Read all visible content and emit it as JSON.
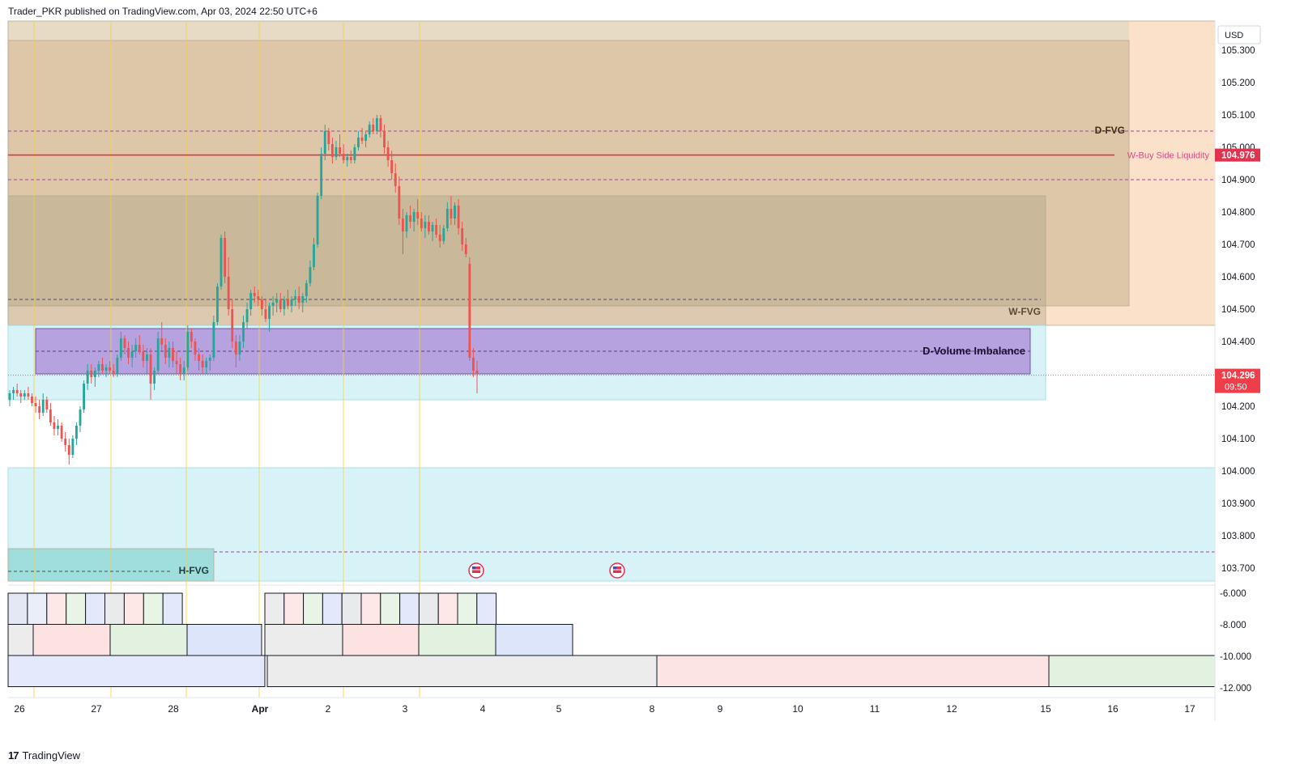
{
  "header": {
    "text": "Trader_PKR published on TradingView.com, Apr 03, 2024 22:50 UTC+6"
  },
  "footer": {
    "brand": "TradingView",
    "logo_icon": "tradingview-logo-icon"
  },
  "chart_data": {
    "type": "candlestick",
    "currency": "USD",
    "y_axis_ticks": [
      "105.300",
      "105.200",
      "105.100",
      "105.000",
      "104.900",
      "104.800",
      "104.700",
      "104.600",
      "104.500",
      "104.400",
      "104.300",
      "104.200",
      "104.100",
      "104.000",
      "103.900",
      "103.800",
      "103.700"
    ],
    "ylim": [
      103.66,
      105.39
    ],
    "x_axis_ticks": [
      "26",
      "27",
      "28",
      "Apr",
      "2",
      "3",
      "4",
      "5",
      "8",
      "9",
      "10",
      "11",
      "12",
      "15",
      "16",
      "17"
    ],
    "labels": {
      "d_fvg": "D-FVG",
      "w_fvg": "W-FVG",
      "h_fvg": "H-FVG",
      "d_volume_imbalance": "D-Volume Imbalance",
      "w_buy_side_liquidity": "W-Buy Side Liquidity"
    },
    "price_badges": {
      "liquidity_level": "104.976",
      "last_price": "104.296",
      "countdown": "09:50"
    },
    "levels": {
      "buy_side_liquidity": 104.976,
      "last_price": 104.296,
      "dashed_d_fvg": 105.05,
      "dashed_upper": 104.9,
      "dashed_w_fvg": 104.53,
      "dashed_volume_imbalance": 104.37,
      "dashed_low": 103.75,
      "dashed_h_fvg": 103.69
    },
    "zones": [
      {
        "name": "d-fvg-outer",
        "top": 105.39,
        "bottom": 104.45,
        "color": "#f8c89e",
        "alpha": 0.55
      },
      {
        "name": "d-fvg-inner",
        "top": 105.33,
        "bottom": 104.51,
        "color": "#c7b38c",
        "alpha": 0.55
      },
      {
        "name": "w-fvg",
        "top": 104.85,
        "bottom": 104.45,
        "color": "#a39f80",
        "alpha": 0.35
      },
      {
        "name": "cyan-upper",
        "top": 104.45,
        "bottom": 104.22,
        "color": "#c8eef4",
        "alpha": 0.7
      },
      {
        "name": "d-volume-imbalance",
        "top": 104.44,
        "bottom": 104.3,
        "color": "#a97fd6",
        "alpha": 0.7
      },
      {
        "name": "cyan-lower",
        "top": 104.01,
        "bottom": 103.66,
        "color": "#c8eef4",
        "alpha": 0.7
      },
      {
        "name": "h-fvg",
        "top": 103.76,
        "bottom": 103.66,
        "color": "#7ccfcc",
        "alpha": 0.6
      }
    ],
    "sub_axis_ticks": [
      "-6.000",
      "-8.000",
      "-10.000",
      "-12.000"
    ],
    "candle_colors": {
      "up": "#26a69a",
      "down": "#ef5350"
    },
    "candles": [
      [
        104.22,
        104.25,
        104.2,
        104.24
      ],
      [
        104.24,
        104.26,
        104.22,
        104.25
      ],
      [
        104.25,
        104.27,
        104.23,
        104.24
      ],
      [
        104.24,
        104.25,
        104.21,
        104.23
      ],
      [
        104.23,
        104.25,
        104.22,
        104.24
      ],
      [
        104.24,
        104.26,
        104.22,
        104.23
      ],
      [
        104.23,
        104.24,
        104.2,
        104.21
      ],
      [
        104.21,
        104.23,
        104.18,
        104.2
      ],
      [
        104.2,
        104.22,
        104.16,
        104.18
      ],
      [
        104.18,
        104.24,
        104.17,
        104.22
      ],
      [
        104.22,
        104.23,
        104.18,
        104.19
      ],
      [
        104.19,
        104.21,
        104.14,
        104.15
      ],
      [
        104.15,
        104.17,
        104.11,
        104.13
      ],
      [
        104.13,
        104.16,
        104.11,
        104.14
      ],
      [
        104.14,
        104.15,
        104.09,
        104.1
      ],
      [
        104.1,
        104.12,
        104.06,
        104.08
      ],
      [
        104.08,
        104.1,
        104.02,
        104.05
      ],
      [
        104.05,
        104.11,
        104.04,
        104.1
      ],
      [
        104.1,
        104.15,
        104.08,
        104.14
      ],
      [
        104.14,
        104.2,
        104.12,
        104.19
      ],
      [
        104.19,
        104.28,
        104.18,
        104.27
      ],
      [
        104.27,
        104.33,
        104.25,
        104.31
      ],
      [
        104.31,
        104.33,
        104.27,
        104.29
      ],
      [
        104.29,
        104.32,
        104.26,
        104.31
      ],
      [
        104.31,
        104.34,
        104.29,
        104.33
      ],
      [
        104.33,
        104.35,
        104.3,
        104.31
      ],
      [
        104.31,
        104.33,
        104.29,
        104.32
      ],
      [
        104.32,
        104.34,
        104.3,
        104.31
      ],
      [
        104.31,
        104.33,
        104.29,
        104.3
      ],
      [
        104.3,
        104.36,
        104.29,
        104.35
      ],
      [
        104.35,
        104.43,
        104.34,
        104.41
      ],
      [
        104.41,
        104.42,
        104.36,
        104.38
      ],
      [
        104.38,
        104.4,
        104.33,
        104.35
      ],
      [
        104.35,
        104.39,
        104.32,
        104.37
      ],
      [
        104.37,
        104.41,
        104.35,
        104.39
      ],
      [
        104.39,
        104.42,
        104.36,
        104.37
      ],
      [
        104.37,
        104.39,
        104.32,
        104.34
      ],
      [
        104.34,
        104.38,
        104.3,
        104.36
      ],
      [
        104.36,
        104.38,
        104.22,
        104.27
      ],
      [
        104.27,
        104.32,
        104.25,
        104.31
      ],
      [
        104.31,
        104.43,
        104.3,
        104.41
      ],
      [
        104.41,
        104.46,
        104.37,
        104.39
      ],
      [
        104.39,
        104.41,
        104.33,
        104.35
      ],
      [
        104.35,
        104.4,
        104.32,
        104.38
      ],
      [
        104.38,
        104.4,
        104.32,
        104.34
      ],
      [
        104.34,
        104.37,
        104.3,
        104.33
      ],
      [
        104.33,
        104.35,
        104.28,
        104.3
      ],
      [
        104.3,
        104.34,
        104.28,
        104.32
      ],
      [
        104.32,
        104.45,
        104.31,
        104.43
      ],
      [
        104.43,
        104.44,
        104.38,
        104.4
      ],
      [
        104.4,
        104.41,
        104.34,
        104.36
      ],
      [
        104.36,
        104.38,
        104.31,
        104.34
      ],
      [
        104.34,
        104.36,
        104.3,
        104.32
      ],
      [
        104.32,
        104.35,
        104.3,
        104.34
      ],
      [
        104.34,
        104.36,
        104.31,
        104.35
      ],
      [
        104.35,
        104.48,
        104.34,
        104.46
      ],
      [
        104.46,
        104.58,
        104.45,
        104.57
      ],
      [
        104.57,
        104.73,
        104.56,
        104.72
      ],
      [
        104.72,
        104.74,
        104.58,
        104.6
      ],
      [
        104.6,
        104.66,
        104.48,
        104.5
      ],
      [
        104.5,
        104.53,
        104.38,
        104.4
      ],
      [
        104.4,
        104.42,
        104.32,
        104.36
      ],
      [
        104.36,
        104.42,
        104.34,
        104.4
      ],
      [
        104.4,
        104.48,
        104.38,
        104.46
      ],
      [
        104.46,
        104.52,
        104.44,
        104.5
      ],
      [
        104.5,
        104.56,
        104.48,
        104.55
      ],
      [
        104.55,
        104.57,
        104.52,
        104.54
      ],
      [
        104.54,
        104.56,
        104.51,
        104.53
      ],
      [
        104.53,
        104.54,
        104.48,
        104.5
      ],
      [
        104.5,
        104.53,
        104.46,
        104.47
      ],
      [
        104.47,
        104.52,
        104.43,
        104.51
      ],
      [
        104.51,
        104.54,
        104.48,
        104.52
      ],
      [
        104.52,
        104.55,
        104.49,
        104.53
      ],
      [
        104.53,
        104.55,
        104.49,
        104.5
      ],
      [
        104.5,
        104.54,
        104.48,
        104.53
      ],
      [
        104.53,
        104.56,
        104.5,
        104.51
      ],
      [
        104.51,
        104.54,
        104.49,
        104.53
      ],
      [
        104.53,
        104.56,
        104.51,
        104.54
      ],
      [
        104.54,
        104.57,
        104.5,
        104.52
      ],
      [
        104.52,
        104.55,
        104.49,
        104.54
      ],
      [
        104.54,
        104.59,
        104.52,
        104.58
      ],
      [
        104.58,
        104.65,
        104.57,
        104.63
      ],
      [
        104.63,
        104.72,
        104.62,
        104.7
      ],
      [
        104.7,
        104.86,
        104.69,
        104.85
      ],
      [
        104.85,
        105.0,
        104.84,
        104.98
      ],
      [
        104.98,
        105.07,
        104.96,
        105.05
      ],
      [
        105.05,
        105.06,
        104.99,
        105.01
      ],
      [
        105.01,
        105.03,
        104.95,
        104.97
      ],
      [
        104.97,
        105.02,
        104.96,
        105.0
      ],
      [
        105.0,
        105.04,
        104.97,
        104.98
      ],
      [
        104.98,
        105.01,
        104.95,
        104.96
      ],
      [
        104.96,
        104.98,
        104.94,
        104.97
      ],
      [
        104.97,
        104.99,
        104.95,
        104.96
      ],
      [
        104.96,
        105.01,
        104.95,
        105.0
      ],
      [
        105.0,
        105.05,
        104.99,
        105.03
      ],
      [
        105.03,
        105.06,
        105.01,
        105.02
      ],
      [
        105.02,
        105.05,
        105.0,
        105.04
      ],
      [
        105.04,
        105.08,
        105.03,
        105.07
      ],
      [
        105.07,
        105.09,
        105.04,
        105.05
      ],
      [
        105.05,
        105.1,
        105.04,
        105.09
      ],
      [
        105.09,
        105.1,
        105.03,
        105.05
      ],
      [
        105.05,
        105.07,
        104.98,
        105.0
      ],
      [
        105.0,
        105.02,
        104.94,
        104.96
      ],
      [
        104.96,
        104.99,
        104.9,
        104.92
      ],
      [
        104.92,
        104.95,
        104.86,
        104.88
      ],
      [
        104.88,
        104.91,
        104.76,
        104.78
      ],
      [
        104.78,
        104.81,
        104.67,
        104.74
      ],
      [
        104.74,
        104.8,
        104.72,
        104.79
      ],
      [
        104.79,
        104.82,
        104.75,
        104.77
      ],
      [
        104.77,
        104.81,
        104.74,
        104.8
      ],
      [
        104.8,
        104.84,
        104.76,
        104.78
      ],
      [
        104.78,
        104.8,
        104.74,
        104.75
      ],
      [
        104.75,
        104.79,
        104.72,
        104.77
      ],
      [
        104.77,
        104.79,
        104.73,
        104.74
      ],
      [
        104.74,
        104.77,
        104.71,
        104.76
      ],
      [
        104.76,
        104.78,
        104.72,
        104.73
      ],
      [
        104.73,
        104.76,
        104.69,
        104.71
      ],
      [
        104.71,
        104.76,
        104.7,
        104.75
      ],
      [
        104.75,
        104.83,
        104.74,
        104.81
      ],
      [
        104.81,
        104.85,
        104.76,
        104.78
      ],
      [
        104.78,
        104.83,
        104.76,
        104.82
      ],
      [
        104.82,
        104.84,
        104.73,
        104.75
      ],
      [
        104.75,
        104.77,
        104.68,
        104.7
      ],
      [
        104.7,
        104.72,
        104.66,
        104.67
      ],
      [
        104.64,
        104.66,
        104.34,
        104.35
      ],
      [
        104.35,
        104.38,
        104.29,
        104.31
      ],
      [
        104.31,
        104.34,
        104.24,
        104.3
      ]
    ],
    "period_blocks": [
      {
        "row": 0,
        "cells": [
          [
            "#e4e8f5",
            1
          ],
          [
            "#e9eef9",
            1
          ],
          [
            "#fde7e7",
            1
          ],
          [
            "#e8f5e6",
            1
          ],
          [
            "#e3e9fb",
            1
          ],
          [
            "#e9eaec",
            1
          ],
          [
            "#fde7e7",
            1
          ],
          [
            "#e8f5e6",
            1
          ],
          [
            "#e3e9fb",
            1
          ]
        ]
      },
      {
        "row": 1,
        "cells": [
          [
            "#ececec",
            2
          ],
          [
            "#fde2e2",
            4
          ],
          [
            "#e3f2e0",
            4
          ],
          [
            "#dde5fb",
            4
          ]
        ]
      },
      {
        "row": 2,
        "cells": [
          [
            "#e4e9fb",
            1
          ]
        ]
      }
    ],
    "markers": [
      {
        "name": "us-event-flag-1",
        "icon": "us-flag-icon"
      },
      {
        "name": "us-event-flag-2",
        "icon": "us-flag-icon"
      }
    ]
  }
}
